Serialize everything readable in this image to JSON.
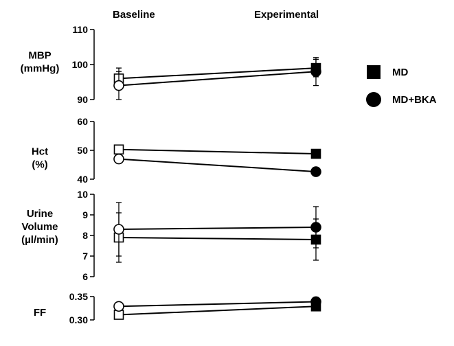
{
  "chart_data": {
    "type": "line",
    "columns": [
      "Baseline",
      "Experimental"
    ],
    "legend": {
      "placement": "right",
      "entries": [
        {
          "label": "MD",
          "marker": "square"
        },
        {
          "label": "MD+BKA",
          "marker": "circle"
        }
      ]
    },
    "marker_style": "open markers at Baseline, filled markers at Experimental",
    "panels": [
      {
        "ylabel": [
          "MBP",
          "(mmHg)"
        ],
        "ylim": [
          90,
          110
        ],
        "yticks": [
          90,
          100,
          110
        ],
        "ytick_labels": [
          "90",
          "100",
          "110"
        ],
        "series": [
          {
            "name": "MD",
            "values": [
              96,
              99
            ],
            "errors": [
              3,
              2.5
            ]
          },
          {
            "name": "MD+BKA",
            "values": [
              94,
              98
            ],
            "errors": [
              4,
              4
            ]
          }
        ]
      },
      {
        "ylabel": [
          "Hct",
          "(%)"
        ],
        "ylim": [
          40,
          60
        ],
        "yticks": [
          40,
          50,
          60
        ],
        "ytick_labels": [
          "40",
          "50",
          "60"
        ],
        "series": [
          {
            "name": "MD",
            "values": [
              50.3,
              48.8
            ],
            "errors": [
              1.5,
              1
            ]
          },
          {
            "name": "MD+BKA",
            "values": [
              47,
              42.6
            ],
            "errors": [
              1,
              1
            ]
          }
        ]
      },
      {
        "ylabel": [
          "Urine",
          "Volume",
          "(µl/min)"
        ],
        "ylim": [
          6,
          10
        ],
        "yticks": [
          6,
          7,
          8,
          9,
          10
        ],
        "ytick_labels": [
          "6",
          "7",
          "8",
          "9",
          "10"
        ],
        "series": [
          {
            "name": "MD",
            "values": [
              7.9,
              7.8
            ],
            "errors": [
              1.2,
              1
            ]
          },
          {
            "name": "MD+BKA",
            "values": [
              8.3,
              8.4
            ],
            "errors": [
              1.3,
              1
            ]
          }
        ]
      },
      {
        "ylabel": [
          "FF"
        ],
        "ylim": [
          0.3,
          0.35
        ],
        "yticks": [
          0.3,
          0.35
        ],
        "ytick_labels": [
          "0.30",
          "0.35"
        ],
        "series": [
          {
            "name": "MD",
            "values": [
              0.311,
              0.329
            ],
            "errors": [
              0.003,
              0.003
            ]
          },
          {
            "name": "MD+BKA",
            "values": [
              0.329,
              0.339
            ],
            "errors": [
              0.003,
              0.003
            ]
          }
        ]
      }
    ]
  }
}
